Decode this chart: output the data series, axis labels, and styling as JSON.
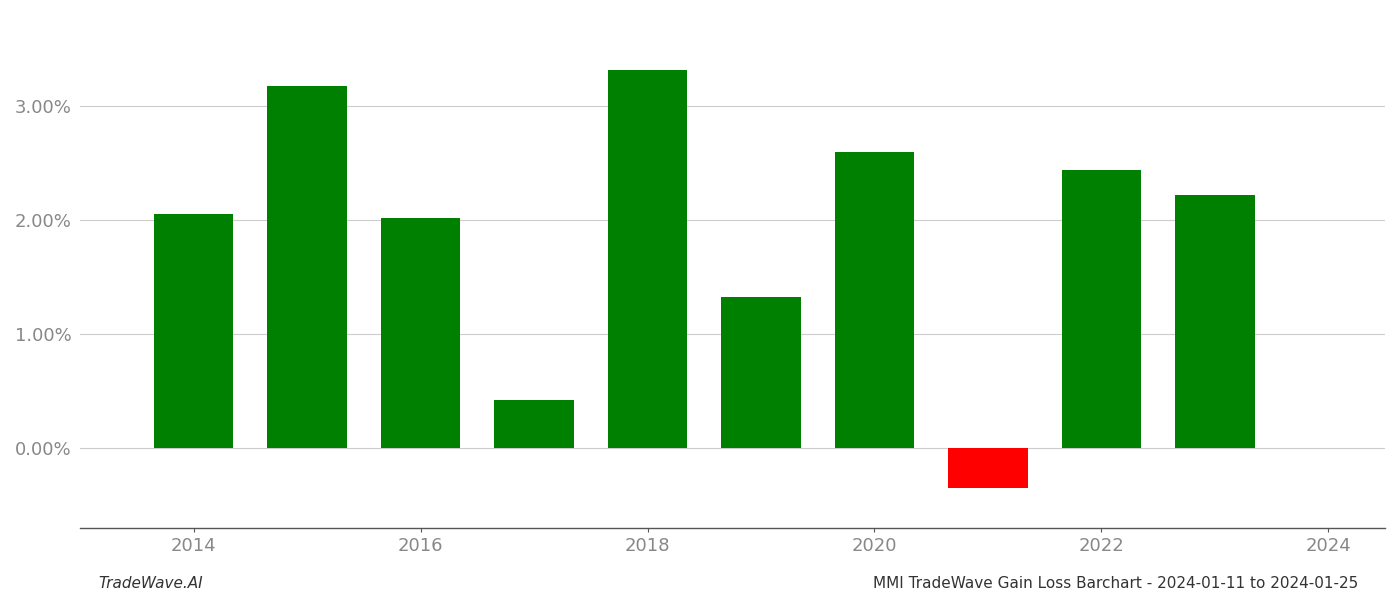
{
  "years": [
    2014,
    2015,
    2016,
    2017,
    2018,
    2019,
    2020,
    2021,
    2022,
    2023
  ],
  "values": [
    0.0205,
    0.0318,
    0.0202,
    0.0042,
    0.0332,
    0.0133,
    0.026,
    -0.0035,
    0.0244,
    0.0222
  ],
  "colors": [
    "#008000",
    "#008000",
    "#008000",
    "#008000",
    "#008000",
    "#008000",
    "#008000",
    "#ff0000",
    "#008000",
    "#008000"
  ],
  "bar_width": 0.7,
  "xlim_min": 2013.0,
  "xlim_max": 2024.5,
  "ylim_min": -0.007,
  "ylim_max": 0.038,
  "xticks": [
    2014,
    2016,
    2018,
    2020,
    2022,
    2024
  ],
  "ytick_vals": [
    0.0,
    0.01,
    0.02,
    0.03
  ],
  "footer_left": "TradeWave.AI",
  "footer_right": "MMI TradeWave Gain Loss Barchart - 2024-01-11 to 2024-01-25",
  "background_color": "#ffffff",
  "grid_color": "#cccccc",
  "axis_color": "#555555",
  "tick_label_color": "#888888",
  "footer_fontsize": 11,
  "tick_fontsize": 13
}
